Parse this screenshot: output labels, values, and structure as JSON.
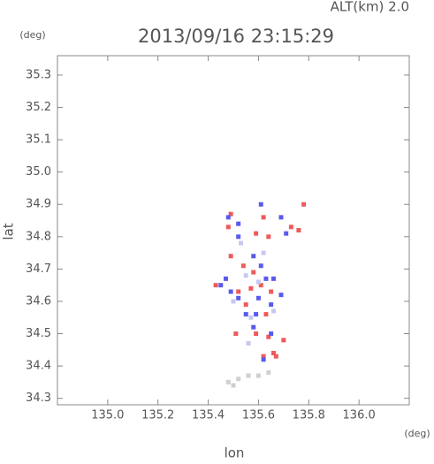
{
  "chart_data": {
    "type": "scatter",
    "title": "2013/09/16 23:15:29",
    "subtitle": "ALT(km) 2.0",
    "x_label": "lon",
    "y_label": "lat",
    "x_unit": "(deg)",
    "y_unit": "(deg)",
    "xlim": [
      134.8,
      136.2
    ],
    "ylim": [
      34.28,
      35.36
    ],
    "xticks": [
      {
        "value": 135,
        "label": "135.0"
      },
      135.2,
      135.4,
      135.6,
      135.8,
      {
        "value": 136,
        "label": "136.0"
      }
    ],
    "yticks": [
      34.3,
      34.4,
      34.5,
      34.6,
      34.7,
      34.8,
      34.9,
      {
        "value": 35,
        "label": "35.0"
      },
      35.1,
      35.2,
      35.3
    ],
    "series": [
      {
        "color": "#ee5a5a",
        "x": [
          135.48,
          135.49,
          135.59,
          135.62,
          135.64,
          135.73,
          135.76,
          135.78,
          135.43,
          135.52,
          135.57,
          135.61,
          135.65,
          135.55,
          135.63,
          135.59,
          135.64,
          135.66,
          135.51,
          135.7,
          135.49,
          135.54,
          135.58,
          135.67,
          135.62
        ],
        "values": [
          34.83,
          34.87,
          34.81,
          34.86,
          34.8,
          34.83,
          34.82,
          34.9,
          34.65,
          34.63,
          34.64,
          34.65,
          34.63,
          34.59,
          34.56,
          34.5,
          34.49,
          34.44,
          34.5,
          34.48,
          34.74,
          34.71,
          34.69,
          34.43,
          34.43
        ]
      },
      {
        "color": "#5a5aee",
        "x": [
          135.48,
          135.52,
          135.61,
          135.69,
          135.71,
          135.52,
          135.47,
          135.52,
          135.59,
          135.63,
          135.66,
          135.61,
          135.58,
          135.55,
          135.65,
          135.69,
          135.58,
          135.62,
          135.65,
          135.49,
          135.6,
          135.45
        ],
        "values": [
          34.86,
          34.84,
          34.9,
          34.86,
          34.81,
          34.8,
          34.67,
          34.61,
          34.56,
          34.67,
          34.67,
          34.71,
          34.74,
          34.56,
          34.59,
          34.62,
          34.52,
          34.42,
          34.5,
          34.63,
          34.61,
          34.65
        ]
      },
      {
        "color": "#c8c8f2",
        "x": [
          135.55,
          135.6,
          135.5,
          135.57,
          135.62,
          135.53,
          135.66,
          135.56
        ],
        "values": [
          34.68,
          34.66,
          34.6,
          34.55,
          34.75,
          34.78,
          34.57,
          34.47
        ]
      },
      {
        "color": "#d0d0d0",
        "x": [
          135.48,
          135.52,
          135.56,
          135.6,
          135.5,
          135.64
        ],
        "values": [
          34.35,
          34.36,
          34.37,
          34.37,
          34.34,
          34.38
        ]
      }
    ]
  }
}
